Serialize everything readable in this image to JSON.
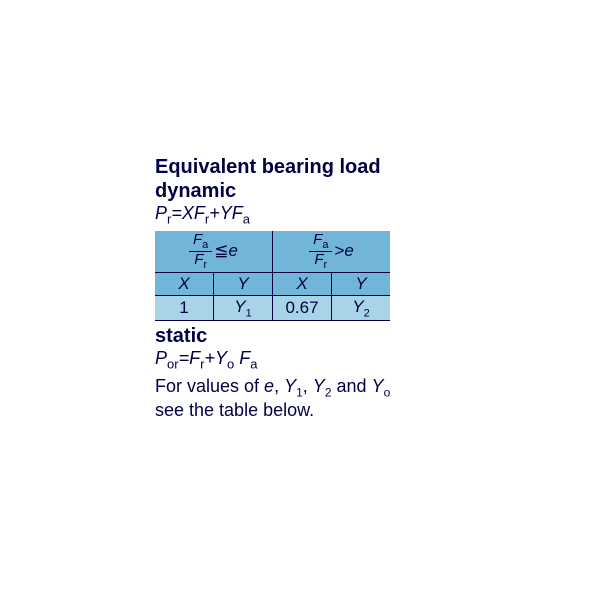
{
  "title": "Equivalent bearing load",
  "dynamic_label": "dynamic",
  "static_label": "static",
  "formula_dynamic_html": "<i>P</i><span class='sub'>r</span>=<i>X</i><i>F</i><span class='sub'>r</span>+<i>Y</i><i>F</i><span class='sub'>a</span>",
  "formula_static_html": "<i>P</i><span class='sub'>or</span>=<i>F</i><span class='sub'>r</span>+<i>Y</i><span class='sub'>o</span> <i>F</i><span class='sub'>a</span>",
  "note_html": "For values of <i>e</i>, <i>Y</i><span style='font-size:12px;vertical-align:sub'>1</span>, <i>Y</i><span style='font-size:12px;vertical-align:sub'>2</span> and <i>Y</i><span style='font-size:12px;vertical-align:sub'>o</span><br>see the table below.",
  "table": {
    "frac_num": "F",
    "frac_num_sub_a": "a",
    "frac_den": "F",
    "frac_den_sub_r": "r",
    "le_e_html": "≦<i>e</i>",
    "gt_e_html": ">​<i>e</i>",
    "X": "X",
    "Y": "Y",
    "v_1": "1",
    "v_Y1_html": "<i>Y</i><span class='subsmall'>1</span>",
    "v_067": "0.67",
    "v_Y2_html": "<i>Y</i><span class='subsmall'>2</span>",
    "colors": {
      "header_bg": "#71b6d7",
      "value_bg": "#a9d3e6",
      "border": "#000044",
      "text": "#000044"
    }
  }
}
